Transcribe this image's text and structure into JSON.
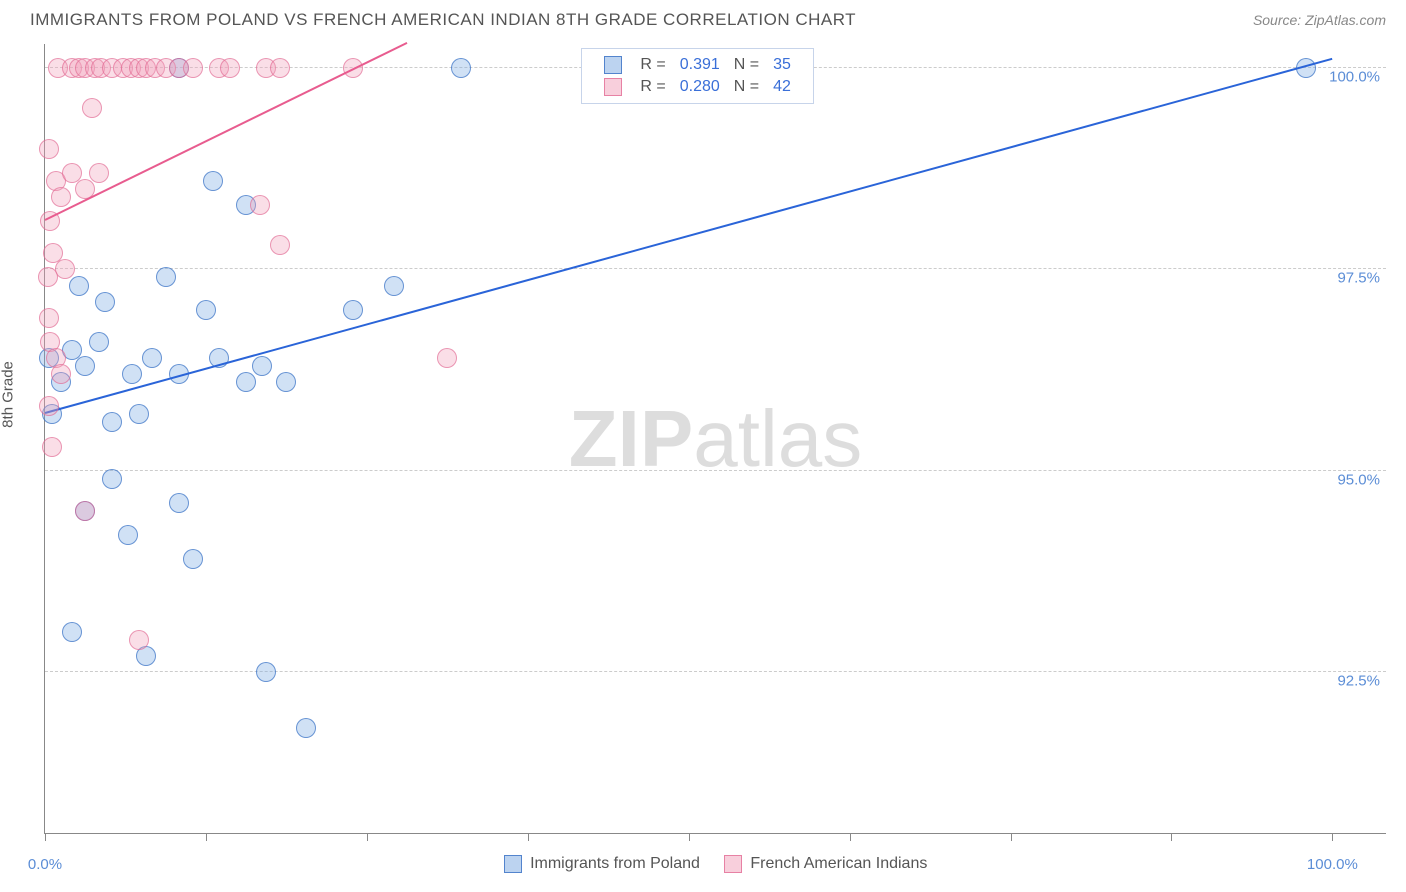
{
  "title": "IMMIGRANTS FROM POLAND VS FRENCH AMERICAN INDIAN 8TH GRADE CORRELATION CHART",
  "source_label": "Source: ZipAtlas.com",
  "yaxis_label": "8th Grade",
  "watermark_a": "ZIP",
  "watermark_b": "atlas",
  "chart": {
    "type": "scatter",
    "background_color": "#ffffff",
    "grid_color": "#cccccc",
    "axis_color": "#888888",
    "label_color": "#5b8dd6",
    "xlim": [
      0,
      100
    ],
    "ylim": [
      90.5,
      100.3
    ],
    "xtick_positions": [
      0,
      12,
      24,
      36,
      48,
      60,
      72,
      84,
      96
    ],
    "xtick_labels": {
      "0": "0.0%",
      "96": "100.0%"
    },
    "yticks": [
      92.5,
      95.0,
      97.5,
      100.0
    ],
    "ytick_labels": [
      "92.5%",
      "95.0%",
      "97.5%",
      "100.0%"
    ],
    "point_radius": 10,
    "series": [
      {
        "name": "Immigrants from Poland",
        "color_fill": "rgba(121,168,226,0.35)",
        "color_stroke": "rgba(56,112,196,0.7)",
        "trend_color": "#2a64d8",
        "R": "0.391",
        "N": "35",
        "trend": {
          "x1": 0,
          "y1": 95.7,
          "x2": 96,
          "y2": 100.1
        },
        "points": [
          [
            0.3,
            96.4
          ],
          [
            2,
            96.5
          ],
          [
            1.2,
            96.1
          ],
          [
            0.5,
            95.7
          ],
          [
            3,
            96.3
          ],
          [
            4,
            96.6
          ],
          [
            5,
            95.6
          ],
          [
            6.5,
            96.2
          ],
          [
            8,
            96.4
          ],
          [
            7,
            95.7
          ],
          [
            2.5,
            97.3
          ],
          [
            4.5,
            97.1
          ],
          [
            9,
            97.4
          ],
          [
            12,
            97.0
          ],
          [
            13,
            96.4
          ],
          [
            10,
            96.2
          ],
          [
            5,
            94.9
          ],
          [
            6.2,
            94.2
          ],
          [
            10,
            94.6
          ],
          [
            11,
            93.9
          ],
          [
            3,
            94.5
          ],
          [
            2,
            93.0
          ],
          [
            16.5,
            92.5
          ],
          [
            7.5,
            92.7
          ],
          [
            19.5,
            91.8
          ],
          [
            15,
            96.1
          ],
          [
            16.2,
            96.3
          ],
          [
            23,
            97.0
          ],
          [
            18,
            96.1
          ],
          [
            26,
            97.3
          ],
          [
            10,
            100.0
          ],
          [
            31,
            100.0
          ],
          [
            94,
            100.0
          ],
          [
            15,
            98.3
          ],
          [
            12.5,
            98.6
          ]
        ]
      },
      {
        "name": "French American Indians",
        "color_fill": "rgba(242,160,185,0.35)",
        "color_stroke": "rgba(224,96,140,0.6)",
        "trend_color": "#e85c8f",
        "R": "0.280",
        "N": "42",
        "trend": {
          "x1": 0,
          "y1": 98.1,
          "x2": 27,
          "y2": 100.3
        },
        "points": [
          [
            0.3,
            99.0
          ],
          [
            0.8,
            98.6
          ],
          [
            1.2,
            98.4
          ],
          [
            0.4,
            98.1
          ],
          [
            0.6,
            97.7
          ],
          [
            1.5,
            97.5
          ],
          [
            0.2,
            97.4
          ],
          [
            0.3,
            96.9
          ],
          [
            0.4,
            96.6
          ],
          [
            0.8,
            96.4
          ],
          [
            1.2,
            96.2
          ],
          [
            0.3,
            95.8
          ],
          [
            0.5,
            95.3
          ],
          [
            3,
            94.5
          ],
          [
            2,
            98.7
          ],
          [
            3,
            98.5
          ],
          [
            4,
            98.7
          ],
          [
            3.5,
            99.5
          ],
          [
            1.0,
            100.0
          ],
          [
            2,
            100.0
          ],
          [
            2.5,
            100.0
          ],
          [
            3,
            100.0
          ],
          [
            3.7,
            100.0
          ],
          [
            4.2,
            100.0
          ],
          [
            5,
            100.0
          ],
          [
            5.8,
            100.0
          ],
          [
            6.4,
            100.0
          ],
          [
            7.0,
            100.0
          ],
          [
            7.5,
            100.0
          ],
          [
            8.2,
            100.0
          ],
          [
            9,
            100.0
          ],
          [
            10,
            100.0
          ],
          [
            11,
            100.0
          ],
          [
            13,
            100.0
          ],
          [
            13.8,
            100.0
          ],
          [
            16.5,
            100.0
          ],
          [
            17.5,
            100.0
          ],
          [
            23,
            100.0
          ],
          [
            16,
            98.3
          ],
          [
            17.5,
            97.8
          ],
          [
            30,
            96.4
          ],
          [
            7,
            92.9
          ]
        ]
      }
    ],
    "legend_box": [
      {
        "swatch": "blue",
        "rlabel": "R =",
        "rval": "0.391",
        "nlabel": "N =",
        "nval": "35"
      },
      {
        "swatch": "pink",
        "rlabel": "R =",
        "rval": "0.280",
        "nlabel": "N =",
        "nval": "42"
      }
    ],
    "bottom_legend": [
      {
        "swatch": "blue",
        "label": "Immigrants from Poland"
      },
      {
        "swatch": "pink",
        "label": "French American Indians"
      }
    ]
  }
}
